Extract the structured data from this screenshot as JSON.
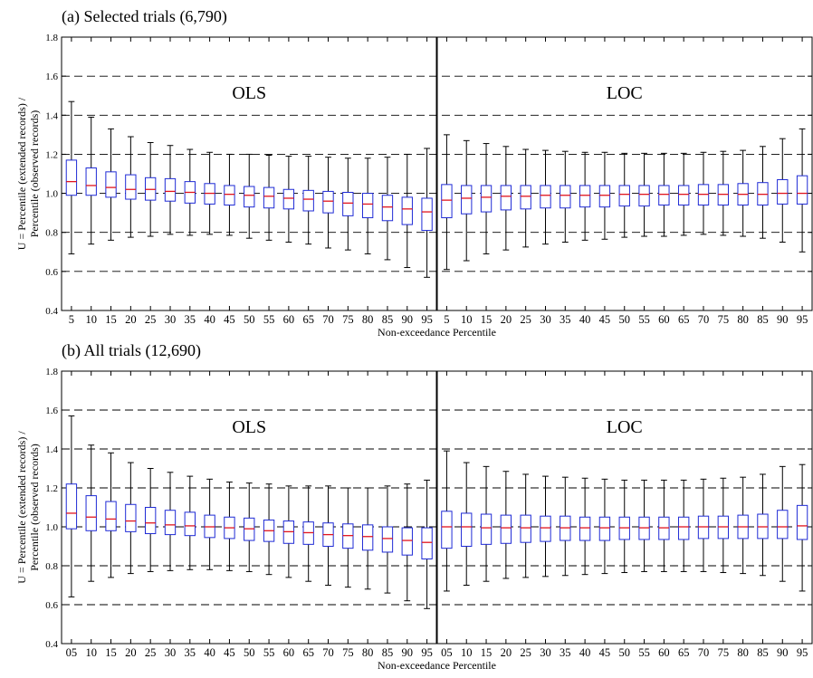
{
  "chart_data": [
    {
      "type": "box",
      "title": "(a) Selected trials (6,790)",
      "xlabel": "Non-exceedance Percentile",
      "ylabel": "U = Percentile (extended records) / Percentile (observed records)",
      "ylim": [
        0.4,
        1.8
      ],
      "yticks": [
        "0.4",
        "0.6",
        "0.8",
        "1.0",
        "1.2",
        "1.4",
        "1.6",
        "1.8"
      ],
      "reference_lines": [
        0.6,
        0.8,
        1.0,
        1.2,
        1.4,
        1.6
      ],
      "groups": [
        {
          "name": "OLS",
          "categories": [
            "5",
            "10",
            "15",
            "20",
            "25",
            "30",
            "35",
            "40",
            "45",
            "50",
            "55",
            "60",
            "65",
            "70",
            "75",
            "80",
            "85",
            "90",
            "95"
          ],
          "median": [
            1.06,
            1.04,
            1.03,
            1.02,
            1.02,
            1.01,
            1.005,
            1.0,
            0.995,
            0.99,
            0.985,
            0.975,
            0.97,
            0.96,
            0.95,
            0.945,
            0.93,
            0.92,
            0.905
          ],
          "q1": [
            0.99,
            0.99,
            0.98,
            0.97,
            0.965,
            0.96,
            0.95,
            0.945,
            0.94,
            0.93,
            0.925,
            0.92,
            0.91,
            0.9,
            0.885,
            0.875,
            0.86,
            0.84,
            0.81
          ],
          "q3": [
            1.17,
            1.13,
            1.11,
            1.095,
            1.08,
            1.075,
            1.06,
            1.05,
            1.04,
            1.035,
            1.03,
            1.02,
            1.015,
            1.01,
            1.005,
            1.0,
            0.99,
            0.98,
            0.975
          ],
          "whisker_low": [
            0.69,
            0.74,
            0.76,
            0.775,
            0.78,
            0.79,
            0.785,
            0.79,
            0.785,
            0.77,
            0.76,
            0.75,
            0.74,
            0.72,
            0.71,
            0.69,
            0.66,
            0.62,
            0.57
          ],
          "whisker_high": [
            1.47,
            1.39,
            1.33,
            1.29,
            1.26,
            1.245,
            1.225,
            1.21,
            1.2,
            1.2,
            1.195,
            1.19,
            1.19,
            1.185,
            1.18,
            1.18,
            1.185,
            1.2,
            1.23
          ]
        },
        {
          "name": "LOC",
          "categories": [
            "5",
            "10",
            "15",
            "20",
            "25",
            "30",
            "35",
            "40",
            "45",
            "50",
            "55",
            "60",
            "65",
            "70",
            "75",
            "80",
            "85",
            "90",
            "95"
          ],
          "median": [
            0.965,
            0.975,
            0.98,
            0.985,
            0.985,
            0.99,
            0.99,
            0.99,
            0.99,
            0.995,
            0.995,
            0.995,
            0.995,
            0.995,
            0.995,
            0.995,
            0.995,
            1.0,
            1.0
          ],
          "q1": [
            0.875,
            0.895,
            0.905,
            0.915,
            0.92,
            0.925,
            0.925,
            0.93,
            0.93,
            0.935,
            0.935,
            0.94,
            0.94,
            0.94,
            0.94,
            0.94,
            0.94,
            0.945,
            0.945
          ],
          "q3": [
            1.045,
            1.04,
            1.04,
            1.04,
            1.04,
            1.04,
            1.04,
            1.04,
            1.04,
            1.04,
            1.04,
            1.04,
            1.04,
            1.045,
            1.045,
            1.05,
            1.055,
            1.07,
            1.09
          ],
          "whisker_low": [
            0.61,
            0.655,
            0.69,
            0.71,
            0.725,
            0.74,
            0.75,
            0.76,
            0.765,
            0.775,
            0.78,
            0.78,
            0.785,
            0.79,
            0.785,
            0.78,
            0.77,
            0.75,
            0.7
          ],
          "whisker_high": [
            1.3,
            1.27,
            1.255,
            1.24,
            1.225,
            1.22,
            1.215,
            1.21,
            1.21,
            1.205,
            1.205,
            1.205,
            1.205,
            1.21,
            1.215,
            1.22,
            1.24,
            1.28,
            1.33
          ]
        }
      ]
    },
    {
      "type": "box",
      "title": "(b) All trials (12,690)",
      "xlabel": "Non-exceedance Percentile",
      "ylabel": "U = Percentile (extended records) / Percentile (observed records)",
      "ylim": [
        0.4,
        1.8
      ],
      "yticks": [
        "0.4",
        "0.6",
        "0.8",
        "1.0",
        "1.2",
        "1.4",
        "1.6",
        "1.8"
      ],
      "reference_lines": [
        0.6,
        0.8,
        1.0,
        1.2,
        1.4,
        1.6
      ],
      "groups": [
        {
          "name": "OLS",
          "categories": [
            "05",
            "10",
            "15",
            "20",
            "25",
            "30",
            "35",
            "40",
            "45",
            "50",
            "55",
            "60",
            "65",
            "70",
            "75",
            "80",
            "85",
            "90",
            "95"
          ],
          "median": [
            1.07,
            1.05,
            1.04,
            1.03,
            1.02,
            1.01,
            1.005,
            1.0,
            0.995,
            0.99,
            0.98,
            0.975,
            0.97,
            0.96,
            0.955,
            0.95,
            0.94,
            0.93,
            0.92
          ],
          "q1": [
            0.99,
            0.98,
            0.98,
            0.975,
            0.965,
            0.96,
            0.955,
            0.945,
            0.94,
            0.93,
            0.925,
            0.915,
            0.91,
            0.9,
            0.89,
            0.88,
            0.87,
            0.855,
            0.835
          ],
          "q3": [
            1.22,
            1.16,
            1.13,
            1.115,
            1.1,
            1.085,
            1.075,
            1.06,
            1.05,
            1.045,
            1.035,
            1.03,
            1.025,
            1.02,
            1.015,
            1.01,
            1.0,
            0.995,
            0.995
          ],
          "whisker_low": [
            0.64,
            0.72,
            0.74,
            0.76,
            0.77,
            0.775,
            0.78,
            0.78,
            0.775,
            0.77,
            0.755,
            0.74,
            0.72,
            0.7,
            0.69,
            0.68,
            0.66,
            0.62,
            0.58
          ],
          "whisker_high": [
            1.57,
            1.42,
            1.38,
            1.33,
            1.3,
            1.28,
            1.26,
            1.245,
            1.23,
            1.225,
            1.22,
            1.21,
            1.21,
            1.21,
            1.2,
            1.2,
            1.21,
            1.22,
            1.24
          ]
        },
        {
          "name": "LOC",
          "categories": [
            "05",
            "10",
            "15",
            "20",
            "25",
            "30",
            "35",
            "40",
            "45",
            "50",
            "55",
            "60",
            "65",
            "70",
            "75",
            "80",
            "85",
            "90",
            "95"
          ],
          "median": [
            1.0,
            1.0,
            0.995,
            0.995,
            0.995,
            0.995,
            0.995,
            0.995,
            0.995,
            0.995,
            0.995,
            0.995,
            1.0,
            1.0,
            1.0,
            1.0,
            1.0,
            1.0,
            1.005
          ],
          "q1": [
            0.89,
            0.9,
            0.91,
            0.915,
            0.92,
            0.925,
            0.93,
            0.93,
            0.93,
            0.935,
            0.935,
            0.935,
            0.935,
            0.94,
            0.94,
            0.94,
            0.94,
            0.94,
            0.935
          ],
          "q3": [
            1.08,
            1.07,
            1.065,
            1.06,
            1.06,
            1.055,
            1.055,
            1.05,
            1.05,
            1.05,
            1.05,
            1.05,
            1.05,
            1.055,
            1.055,
            1.06,
            1.065,
            1.085,
            1.11
          ],
          "whisker_low": [
            0.67,
            0.7,
            0.72,
            0.735,
            0.74,
            0.745,
            0.75,
            0.755,
            0.76,
            0.765,
            0.77,
            0.77,
            0.77,
            0.77,
            0.765,
            0.76,
            0.75,
            0.72,
            0.67
          ],
          "whisker_high": [
            1.39,
            1.33,
            1.31,
            1.285,
            1.27,
            1.26,
            1.255,
            1.25,
            1.245,
            1.24,
            1.24,
            1.24,
            1.24,
            1.245,
            1.25,
            1.255,
            1.27,
            1.31,
            1.32
          ]
        }
      ]
    }
  ]
}
